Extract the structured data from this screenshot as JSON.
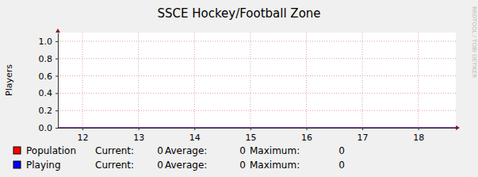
{
  "chart_data": {
    "type": "line",
    "title": "SSCE Hockey/Football Zone",
    "y_label": "Players",
    "watermark": "RRDTOOL / TOBI OETIKER",
    "x": [
      11.56,
      12,
      13,
      14,
      15,
      16,
      17,
      18,
      18.67
    ],
    "xlim": [
      11.56,
      18.67
    ],
    "xticks": [
      12,
      13,
      14,
      15,
      16,
      17,
      18
    ],
    "ylim": [
      0,
      1.1
    ],
    "yticks": [
      {
        "value": 0,
        "label": "0.0"
      },
      {
        "value": 0.2,
        "label": "0.2"
      },
      {
        "value": 0.4,
        "label": "0.4"
      },
      {
        "value": 0.6,
        "label": "0.6"
      },
      {
        "value": 0.8,
        "label": "0.8"
      },
      {
        "value": 1,
        "label": "1.0"
      }
    ],
    "grid": true,
    "stat_labels": [
      "Current:",
      "Average:",
      "Maximum:"
    ],
    "series": [
      {
        "name": "Population",
        "color": "#ff0000",
        "values": [
          0,
          0,
          0,
          0,
          0,
          0,
          0,
          0,
          0
        ],
        "stats": [
          0,
          0,
          0
        ]
      },
      {
        "name": "Playing",
        "color": "#0000ff",
        "values": [
          0,
          0,
          0,
          0,
          0,
          0,
          0,
          0,
          0
        ],
        "stats": [
          0,
          0,
          0
        ]
      }
    ]
  }
}
